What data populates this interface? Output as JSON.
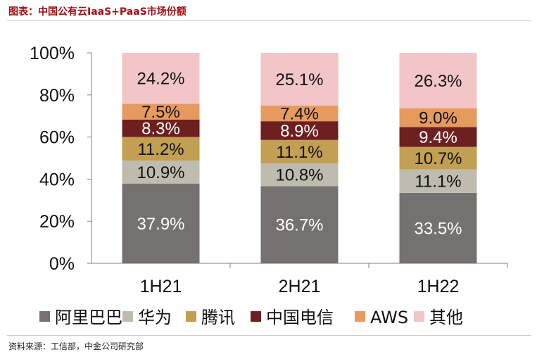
{
  "header": {
    "title": "图表：中国公有云IaaS+PaaS市场份额"
  },
  "footer": {
    "source": "资料来源：工信部，中金公司研究部"
  },
  "chart_data": {
    "type": "bar",
    "stacked": true,
    "percent": true,
    "categories": [
      "1H21",
      "2H21",
      "1H22"
    ],
    "series": [
      {
        "name": "阿里巴巴",
        "color": "#767171",
        "values": [
          37.9,
          36.7,
          33.5
        ],
        "labels": [
          "37.9%",
          "36.7%",
          "33.5%"
        ]
      },
      {
        "name": "华为",
        "color": "#bfbcaf",
        "values": [
          10.9,
          10.8,
          11.1
        ],
        "labels": [
          "10.9%",
          "10.8%",
          "11.1%"
        ]
      },
      {
        "name": "腾讯",
        "color": "#c39f53",
        "values": [
          11.2,
          11.1,
          10.7
        ],
        "labels": [
          "11.2%",
          "11.1%",
          "10.7%"
        ]
      },
      {
        "name": "中国电信",
        "color": "#6e1f1f",
        "values": [
          8.3,
          8.9,
          9.4
        ],
        "labels": [
          "8.3%",
          "8.9%",
          "9.4%"
        ]
      },
      {
        "name": "AWS",
        "color": "#e69a5e",
        "values": [
          7.5,
          7.4,
          9.0
        ],
        "labels": [
          "7.5%",
          "7.4%",
          "9.0%"
        ]
      },
      {
        "name": "其他",
        "color": "#f2c6c6",
        "values": [
          24.2,
          25.1,
          26.3
        ],
        "labels": [
          "24.2%",
          "25.1%",
          "26.3%"
        ]
      }
    ],
    "label_colors": [
      "#ffffff",
      "#111111",
      "#111111",
      "#ffffff",
      "#111111",
      "#111111"
    ],
    "yticks": [
      0,
      20,
      40,
      60,
      80,
      100
    ],
    "ytick_labels": [
      "0%",
      "20%",
      "40%",
      "60%",
      "80%",
      "100%"
    ],
    "ylim": [
      0,
      100
    ],
    "legend_position": "bottom",
    "grid": false
  }
}
